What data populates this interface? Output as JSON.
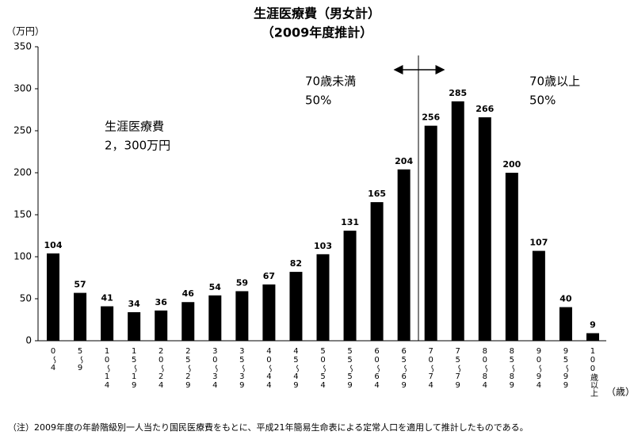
{
  "chart_data": {
    "type": "bar",
    "title": "生涯医療費（男女計）",
    "subtitle": "（2009年度推計）",
    "y_axis_label": "（万円）",
    "x_axis_label": "（歳）",
    "categories": [
      "0～4",
      "5～9",
      "10～14",
      "15～19",
      "20～24",
      "25～29",
      "30～34",
      "35～39",
      "40～44",
      "45～49",
      "50～54",
      "55～59",
      "60～64",
      "65～69",
      "70～74",
      "75～79",
      "80～84",
      "85～89",
      "90～94",
      "95～99",
      "100歳以上"
    ],
    "values": [
      104,
      57,
      41,
      34,
      36,
      46,
      54,
      59,
      67,
      82,
      103,
      131,
      165,
      204,
      256,
      285,
      266,
      200,
      107,
      40,
      9
    ],
    "color": "#000000",
    "ylim": [
      0,
      350
    ],
    "yticks": [
      0,
      50,
      100,
      150,
      200,
      250,
      300,
      350
    ],
    "grid": false,
    "annotations": [
      "70歳未満",
      "50%",
      "70歳以上",
      "50%",
      "生涯医療費",
      "2，300万円"
    ],
    "footnote": "（注）2009年度の年齢階級別一人当たり国民医療費をもとに、平成21年簡易生命表による定常人口を適用して推計したものである。"
  }
}
